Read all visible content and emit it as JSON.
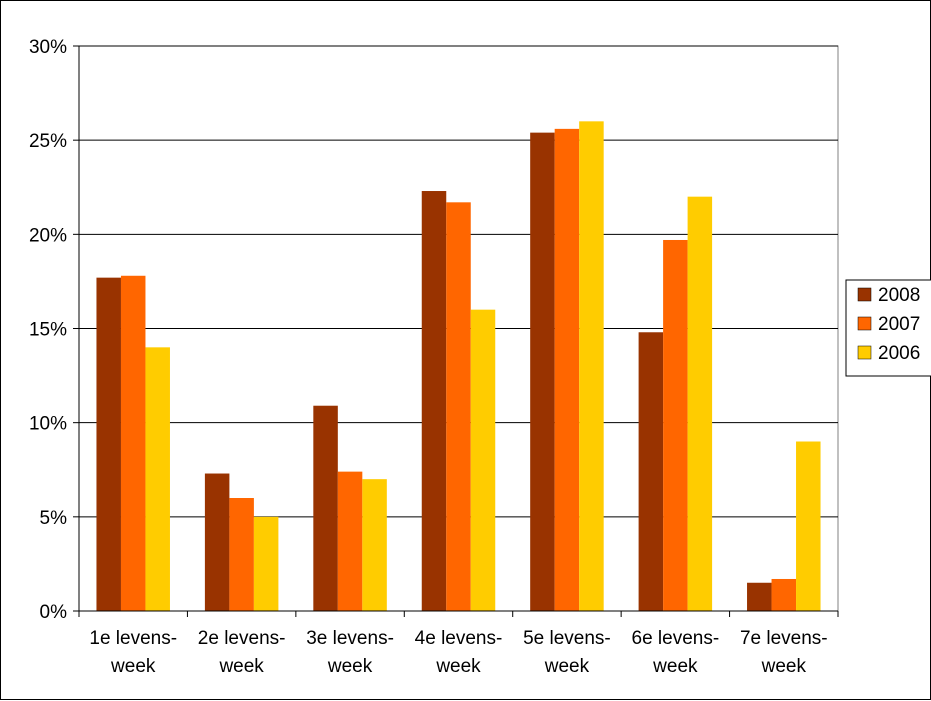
{
  "chart_data": {
    "type": "bar",
    "categories": [
      [
        "1e levens-",
        "week"
      ],
      [
        "2e levens-",
        "week"
      ],
      [
        "3e levens-",
        "week"
      ],
      [
        "4e levens-",
        "week"
      ],
      [
        "5e levens-",
        "week"
      ],
      [
        "6e levens-",
        "week"
      ],
      [
        "7e levens-",
        "week"
      ]
    ],
    "series": [
      {
        "name": "2008",
        "color": "#993300",
        "values": [
          17.7,
          7.3,
          10.9,
          22.3,
          25.4,
          14.8,
          1.5
        ]
      },
      {
        "name": "2007",
        "color": "#FF6600",
        "values": [
          17.8,
          6.0,
          7.4,
          21.7,
          25.6,
          19.7,
          1.7
        ]
      },
      {
        "name": "2006",
        "color": "#FFCC00",
        "values": [
          14.0,
          5.0,
          7.0,
          16.0,
          26.0,
          22.0,
          9.0
        ]
      }
    ],
    "ylim": [
      0,
      30
    ],
    "yticks": [
      0,
      5,
      10,
      15,
      20,
      25,
      30
    ],
    "ytick_labels": [
      "0%",
      "5%",
      "10%",
      "15%",
      "20%",
      "25%",
      "30%"
    ],
    "grid": true,
    "legend": "right",
    "title": "",
    "xlabel": "",
    "ylabel": ""
  }
}
